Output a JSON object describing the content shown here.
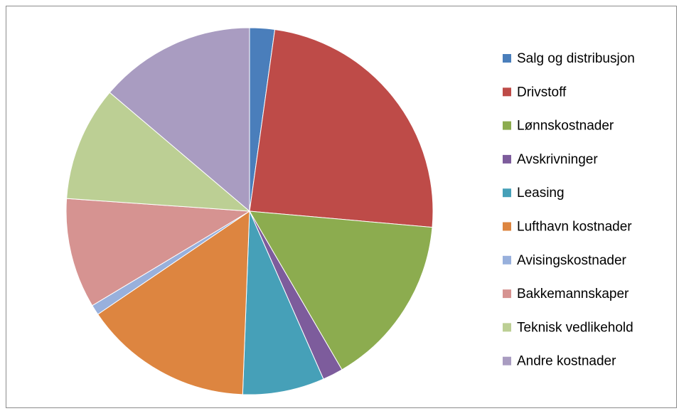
{
  "chart_data": {
    "type": "pie",
    "categories": [
      "Salg og distribusjon",
      "Drivstoff",
      "Lønnskostnader",
      "Avskrivninger",
      "Leasing",
      "Lufthavn kostnader",
      "Avisingskostnader",
      "Bakkemannskaper",
      "Teknisk vedlikehold",
      "Andre kostnader"
    ],
    "values": [
      2.2,
      24.2,
      15.2,
      1.8,
      7.2,
      14.9,
      0.9,
      9.7,
      10.1,
      13.8
    ],
    "colors": [
      "#4a7ebb",
      "#be4b48",
      "#8cac4f",
      "#7d5c9c",
      "#46a0b8",
      "#dd8540",
      "#98b0dc",
      "#d69391",
      "#bccf94",
      "#a99cc1"
    ],
    "legend": "right"
  }
}
